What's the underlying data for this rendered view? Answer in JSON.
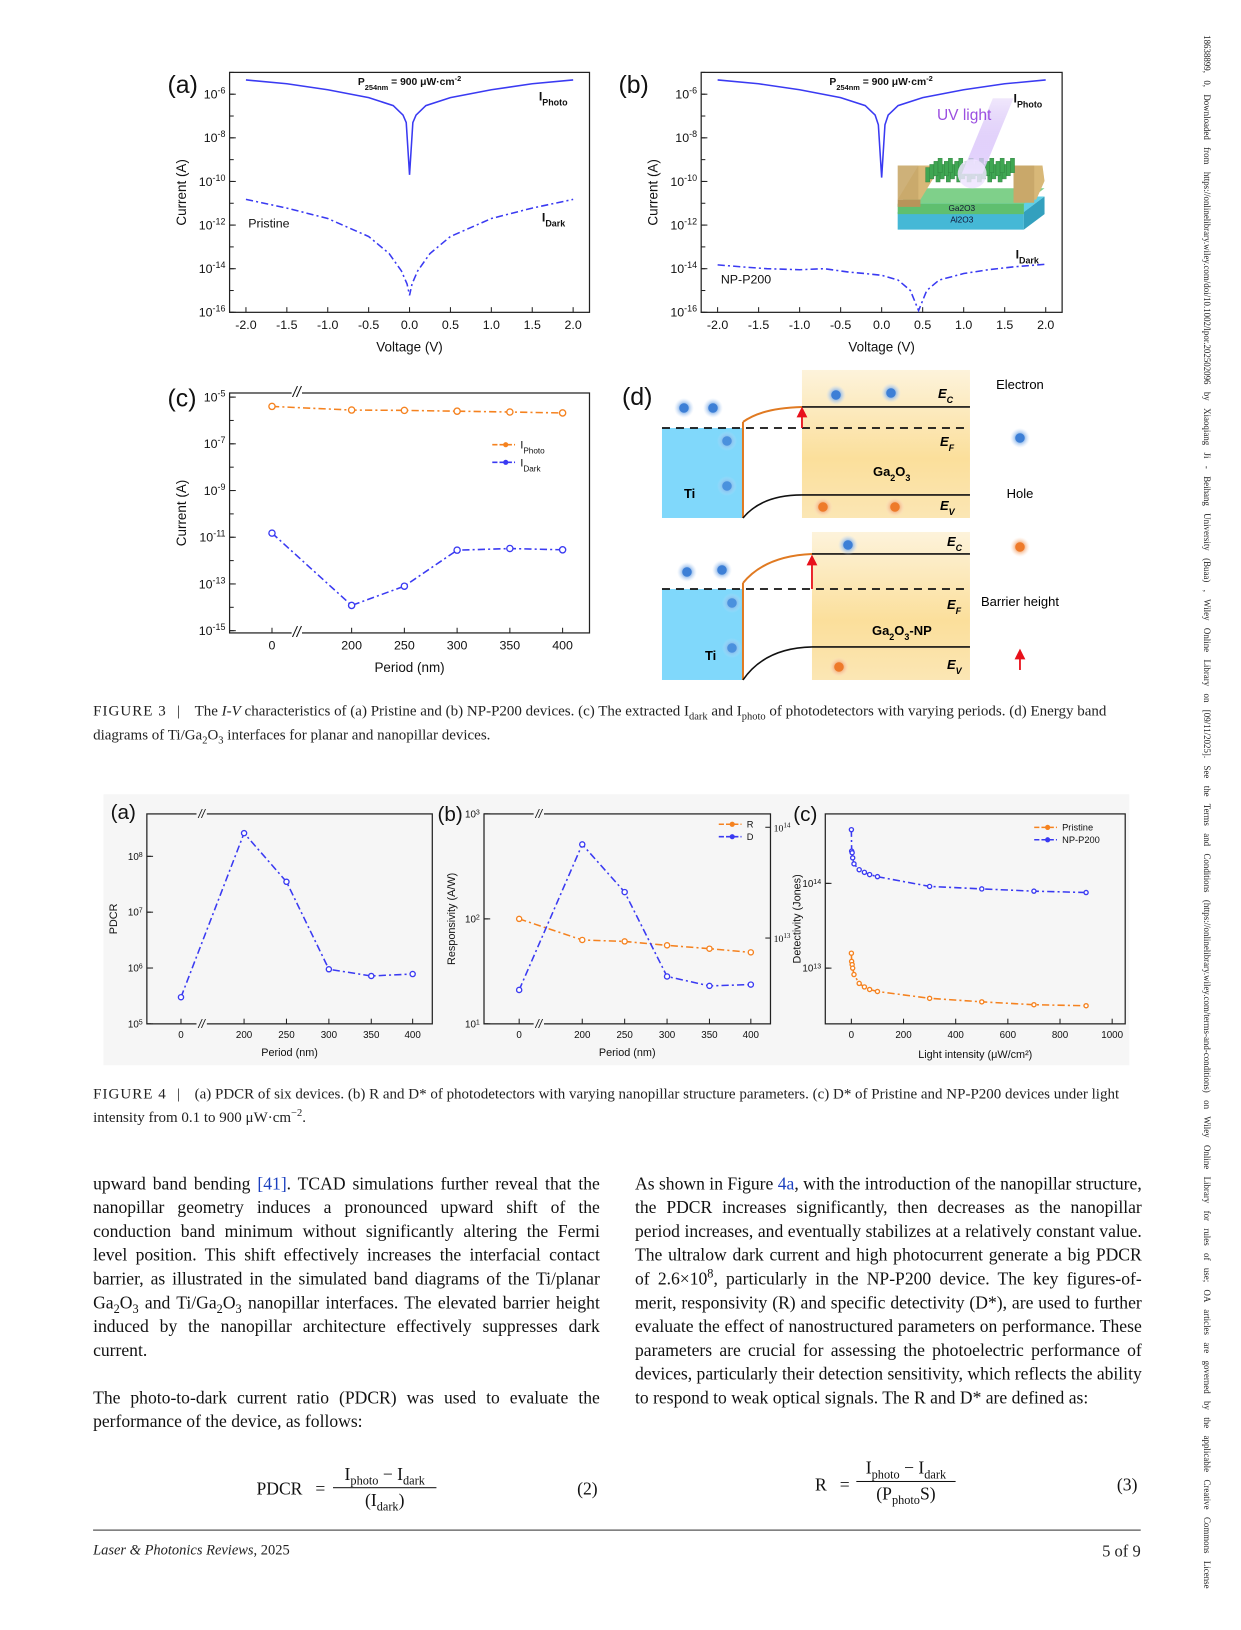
{
  "margin_note": "18638899, 0, Downloaded from https://onlinelibrary.wiley.com/doi/10.1002/lpor.202502096 by Xiaoqiang Ji - Beihang University (Buaa) , Wiley Online Library on [09/11/2025]. See the Terms and Conditions (https://onlinelibrary.wiley.com/terms-and-conditions) on Wiley Online Library for rules of use; OA articles are governed by the applicable Creative Commons License",
  "chart_data": [
    {
      "id": "f3a",
      "panel": "(a)",
      "type": "line",
      "xlabel": "Voltage (V)",
      "ylabel": "Current (A)",
      "xlim": [
        -2.2,
        2.2
      ],
      "ylim": [
        1e-16,
        1e-05
      ],
      "yscale": "log",
      "x_ticks": [
        -2,
        -1.5,
        -1,
        -0.5,
        0,
        0.5,
        1,
        1.5,
        2
      ],
      "x_tick_labels": [
        "-2.0",
        "-1.5",
        "-1.0",
        "-0.5",
        "0.0",
        "0.5",
        "1.0",
        "1.5",
        "2.0"
      ],
      "y_tick_exponents": [
        -16,
        -14,
        -12,
        -10,
        -8,
        -6
      ],
      "series": [
        {
          "name": "IPhoto",
          "color": "#3a3af2",
          "style": "solid",
          "points": [
            [
              -2,
              4.5e-06
            ],
            [
              -1.5,
              3e-06
            ],
            [
              -1,
              1.6e-06
            ],
            [
              -0.5,
              7e-07
            ],
            [
              -0.2,
              3e-07
            ],
            [
              -0.08,
              1.1e-07
            ],
            [
              -0.04,
              5e-08
            ],
            [
              0,
              2e-10
            ],
            [
              0.04,
              5e-08
            ],
            [
              0.08,
              1.1e-07
            ],
            [
              0.2,
              3e-07
            ],
            [
              0.5,
              7e-07
            ],
            [
              1,
              1.6e-06
            ],
            [
              1.5,
              3e-06
            ],
            [
              2,
              4.5e-06
            ]
          ]
        },
        {
          "name": "IDark",
          "color": "#3a3af2",
          "style": "dashdot",
          "points": [
            [
              -2,
              1.5e-11
            ],
            [
              -1.5,
              6e-12
            ],
            [
              -1,
              2e-12
            ],
            [
              -0.5,
              3e-13
            ],
            [
              -0.25,
              5e-14
            ],
            [
              -0.1,
              8e-15
            ],
            [
              -0.03,
              2e-15
            ],
            [
              0,
              6e-16
            ],
            [
              0.03,
              2e-15
            ],
            [
              0.1,
              8e-15
            ],
            [
              0.25,
              5e-14
            ],
            [
              0.5,
              3e-13
            ],
            [
              1,
              2e-12
            ],
            [
              1.5,
              6e-12
            ],
            [
              2,
              1.5e-11
            ]
          ]
        }
      ],
      "annotations": [
        [
          {
            "t": "P"
          },
          {
            "t": "254nm",
            "k": "sub"
          },
          {
            "t": " = 900 μW·cm"
          },
          {
            "t": "-2",
            "k": "sup"
          }
        ],
        [
          {
            "t": "I"
          },
          {
            "t": "Photo",
            "k": "sub"
          }
        ],
        [
          {
            "t": "I"
          },
          {
            "t": "Dark",
            "k": "sub"
          }
        ],
        [
          {
            "t": "Pristine"
          }
        ]
      ]
    },
    {
      "id": "f3b",
      "panel": "(b)",
      "type": "line",
      "xlabel": "Voltage (V)",
      "ylabel": "Current (A)",
      "xlim": [
        -2.2,
        2.2
      ],
      "ylim": [
        1e-16,
        1e-05
      ],
      "yscale": "log",
      "x_ticks": [
        -2,
        -1.5,
        -1,
        -0.5,
        0,
        0.5,
        1,
        1.5,
        2
      ],
      "x_tick_labels": [
        "-2.0",
        "-1.5",
        "-1.0",
        "-0.5",
        "0.0",
        "0.5",
        "1.0",
        "1.5",
        "2.0"
      ],
      "y_tick_exponents": [
        -16,
        -14,
        -12,
        -10,
        -8,
        -6
      ],
      "series": [
        {
          "name": "IPhoto",
          "color": "#3a3af2",
          "style": "solid",
          "points": [
            [
              -2,
              4.5e-06
            ],
            [
              -1.5,
              3e-06
            ],
            [
              -1,
              1.6e-06
            ],
            [
              -0.5,
              7e-07
            ],
            [
              -0.2,
              3e-07
            ],
            [
              -0.08,
              1.1e-07
            ],
            [
              -0.04,
              4e-08
            ],
            [
              0,
              1.5e-10
            ],
            [
              0.04,
              4e-08
            ],
            [
              0.08,
              1.1e-07
            ],
            [
              0.2,
              3e-07
            ],
            [
              0.5,
              7e-07
            ],
            [
              1,
              1.6e-06
            ],
            [
              1.5,
              3e-06
            ],
            [
              2,
              4.5e-06
            ]
          ]
        },
        {
          "name": "IDark",
          "color": "#3a3af2",
          "style": "dashdot",
          "points": [
            [
              -2,
              1.5e-14
            ],
            [
              -1.7,
              1.2e-14
            ],
            [
              -1.4,
              1e-14
            ],
            [
              -1,
              9e-15
            ],
            [
              -0.7,
              1e-14
            ],
            [
              -0.4,
              7e-15
            ],
            [
              -0.2,
              6e-15
            ],
            [
              0,
              5e-15
            ],
            [
              0.2,
              3e-15
            ],
            [
              0.35,
              1e-15
            ],
            [
              0.45,
              1.2e-16
            ],
            [
              0.55,
              1e-15
            ],
            [
              0.7,
              3e-15
            ],
            [
              1,
              6e-15
            ],
            [
              1.3,
              9e-15
            ],
            [
              1.6,
              1.2e-14
            ],
            [
              2,
              1.6e-14
            ]
          ]
        }
      ],
      "annotations": [
        [
          {
            "t": "P"
          },
          {
            "t": "254nm",
            "k": "sub"
          },
          {
            "t": " = 900 μW·cm"
          },
          {
            "t": "-2",
            "k": "sup"
          }
        ],
        [
          {
            "t": "I"
          },
          {
            "t": "Photo",
            "k": "sub"
          }
        ],
        [
          {
            "t": "I"
          },
          {
            "t": "Dark",
            "k": "sub"
          }
        ],
        [
          {
            "t": "NP-P200"
          }
        ],
        [
          {
            "t": "UV light"
          }
        ]
      ],
      "inset": {
        "layer_top": "Ga2O3",
        "layer_bottom": "Al2O3"
      }
    },
    {
      "id": "f3c",
      "panel": "(c)",
      "type": "line",
      "xlabel": "Period (nm)",
      "ylabel": "Current (A)",
      "ylim": [
        8e-16,
        1.5e-05
      ],
      "yscale": "log",
      "x_axis_break": true,
      "x_ticks": [
        0,
        200,
        250,
        300,
        350,
        400
      ],
      "x_tick_labels": [
        "0",
        "200",
        "250",
        "300",
        "350",
        "400"
      ],
      "y_tick_exponents": [
        -15,
        -13,
        -11,
        -9,
        -7,
        -5
      ],
      "series": [
        {
          "name": "IPhoto",
          "color": "#f5821f",
          "style": "dashdot",
          "markers": true,
          "values": [
            4e-06,
            2.8e-06,
            2.7e-06,
            2.5e-06,
            2.3e-06,
            2.1e-06
          ]
        },
        {
          "name": "IDark",
          "color": "#3a3af2",
          "style": "dashdot",
          "markers": true,
          "values": [
            1.5e-11,
            1.2e-14,
            8e-14,
            2.8e-12,
            3.3e-12,
            2.9e-12
          ]
        }
      ],
      "legend_position": "right"
    },
    {
      "id": "f4a",
      "panel": "(a)",
      "type": "line",
      "xlabel": "Period (nm)",
      "ylabel": "PDCR",
      "ylim": [
        100000.0,
        575000000.0
      ],
      "yscale": "log",
      "x_axis_break": true,
      "x_ticks": [
        0,
        200,
        250,
        300,
        350,
        400
      ],
      "x_tick_labels": [
        "0",
        "200",
        "250",
        "300",
        "350",
        "400"
      ],
      "y_tick_exponents": [
        5,
        6,
        7,
        8
      ],
      "series": [
        {
          "name": "PDCR",
          "color": "#3a3af2",
          "style": "dashdot",
          "markers": true,
          "hide_legend": true,
          "values": [
            300000.0,
            260000000.0,
            35000000.0,
            950000.0,
            720000.0,
            780000.0
          ]
        }
      ]
    },
    {
      "id": "f4b",
      "panel": "(b)",
      "type": "line",
      "xlabel": "Period (nm)",
      "ylabel": "Responsivity (A/W)",
      "ylim": [
        10,
        1000
      ],
      "yscale": "log",
      "x_axis_break": true,
      "y2lim": [
        1680000000000.0,
        132000000000000.0
      ],
      "y2_tick_exponents": [
        13,
        14
      ],
      "x_ticks": [
        0,
        200,
        250,
        300,
        350,
        400
      ],
      "x_tick_labels": [
        "0",
        "200",
        "250",
        "300",
        "350",
        "400"
      ],
      "y_tick_exponents": [
        1,
        2,
        3
      ],
      "series": [
        {
          "name": "R",
          "color": "#f5821f",
          "style": "dashdot",
          "markers": true,
          "values": [
            100,
            63,
            61,
            56,
            52,
            48
          ]
        },
        {
          "name": "D",
          "color": "#3a3af2",
          "style": "dashdot",
          "markers": true,
          "axis": "y2",
          "values": [
            3400000000000.0,
            70000000000000.0,
            26000000000000.0,
            4500000000000.0,
            3700000000000.0,
            3800000000000.0
          ]
        }
      ],
      "legend_position": "top-right"
    },
    {
      "id": "f4c",
      "panel": "(c)",
      "type": "line",
      "xlabel": "Light intensity (μW/cm²)",
      "ylabel": "Detectivity (Jones)",
      "xlim": [
        -100,
        1050
      ],
      "ylim": [
        2200000000000.0,
        660000000000000.0
      ],
      "yscale": "log",
      "x_ticks": [
        0,
        200,
        400,
        600,
        800,
        1000
      ],
      "x_tick_labels": [
        "0",
        "200",
        "400",
        "600",
        "800",
        "1000"
      ],
      "y_tick_exponents": [
        13,
        14
      ],
      "series": [
        {
          "name": "Pristine",
          "color": "#f5821f",
          "style": "dashdot",
          "markers": true,
          "points": [
            [
              0.1,
              15000000000000.0
            ],
            [
              1,
              12000000000000.0
            ],
            [
              3,
              11000000000000.0
            ],
            [
              5,
              10000000000000.0
            ],
            [
              10,
              8400000000000.0
            ],
            [
              30,
              6600000000000.0
            ],
            [
              50,
              6000000000000.0
            ],
            [
              70,
              5600000000000.0
            ],
            [
              100,
              5300000000000.0
            ],
            [
              300,
              4400000000000.0
            ],
            [
              500,
              4000000000000.0
            ],
            [
              700,
              3700000000000.0
            ],
            [
              900,
              3600000000000.0
            ]
          ]
        },
        {
          "name": "NP-P200",
          "color": "#3a3af2",
          "style": "dashdot",
          "markers": true,
          "points": [
            [
              0.1,
              430000000000000.0
            ],
            [
              1,
              240000000000000.0
            ],
            [
              3,
              230000000000000.0
            ],
            [
              5,
              200000000000000.0
            ],
            [
              10,
              170000000000000.0
            ],
            [
              30,
              145000000000000.0
            ],
            [
              50,
              135000000000000.0
            ],
            [
              70,
              127000000000000.0
            ],
            [
              100,
              120000000000000.0
            ],
            [
              300,
              92000000000000.0
            ],
            [
              500,
              86000000000000.0
            ],
            [
              700,
              81000000000000.0
            ],
            [
              900,
              78000000000000.0
            ]
          ]
        }
      ],
      "legend_position": "top-right"
    }
  ],
  "figure3d": {
    "panel": "(d)",
    "ec": "E",
    "ec_sub": "C",
    "ef": "E",
    "ef_sub": "F",
    "ev": "E",
    "ev_sub": "V",
    "metal": "Ti",
    "top_material": [
      "Ga",
      "2",
      "O",
      "3"
    ],
    "bottom_material": [
      "Ga",
      "2",
      "O",
      "3",
      "-NP"
    ],
    "legend": {
      "electron": "Electron",
      "hole": "Hole",
      "barrier": "Barrier height"
    }
  },
  "figure3_caption": {
    "label": "FIGURE 3",
    "bar": "|",
    "segments": [
      {
        "t": "The "
      },
      {
        "t": "I-V",
        "k": "i"
      },
      {
        "t": " characteristics of (a) Pristine and (b) NP-P200 devices. (c) The extracted I"
      },
      {
        "t": "dark",
        "k": "sub"
      },
      {
        "t": " and I"
      },
      {
        "t": "photo",
        "k": "sub"
      },
      {
        "t": " of photodetectors with varying periods. (d) Energy band diagrams of Ti/Ga"
      },
      {
        "t": "2",
        "k": "sub"
      },
      {
        "t": "O"
      },
      {
        "t": "3",
        "k": "sub"
      },
      {
        "t": " interfaces for planar and nanopillar devices."
      }
    ]
  },
  "figure4_caption": {
    "label": "FIGURE 4",
    "bar": "|",
    "segments": [
      {
        "t": "(a) PDCR of six devices. (b) R and D* of photodetectors with varying nanopillar structure parameters. (c) D* of Pristine and NP-P200 devices under light intensity from 0.1 to 900 μW·cm"
      },
      {
        "t": "−2",
        "k": "sup"
      },
      {
        "t": "."
      }
    ]
  },
  "body": {
    "left": [
      [
        {
          "t": "upward band bending "
        },
        {
          "t": "[41]",
          "k": "link"
        },
        {
          "t": ". TCAD simulations further reveal that the nanopillar geometry induces a pronounced upward shift of the conduction band minimum without significantly altering the Fermi level position. This shift effectively increases the interfacial contact barrier, as illustrated in the simulated band diagrams of the Ti/planar Ga"
        },
        {
          "t": "2",
          "k": "sub"
        },
        {
          "t": "O"
        },
        {
          "t": "3",
          "k": "sub"
        },
        {
          "t": " and Ti/Ga"
        },
        {
          "t": "2",
          "k": "sub"
        },
        {
          "t": "O"
        },
        {
          "t": "3",
          "k": "sub"
        },
        {
          "t": " nanopillar interfaces. The elevated barrier height induced by the nanopillar architecture effectively suppresses dark current."
        }
      ],
      [
        {
          "t": "The photo-to-dark current ratio (PDCR) was used to evaluate the performance of the device, as follows:"
        }
      ]
    ],
    "right": [
      [
        {
          "t": "As shown in Figure "
        },
        {
          "t": "4a",
          "k": "link"
        },
        {
          "t": ", with the introduction of the nanopillar structure, the PDCR increases significantly, then decreases as the nanopillar period increases, and eventually stabilizes at a relatively constant value. The ultralow dark current and high photocurrent generate a big PDCR of 2.6×10"
        },
        {
          "t": "8",
          "k": "sup"
        },
        {
          "t": ", particularly in the NP-P200 device. The key figures-of-merit, responsivity (R) and specific detectivity (D*), are used to further evaluate the effect of nanostructured parameters on performance. These parameters are crucial for assessing the photoelectric performance of devices, particularly their detection sensitivity, which reflects the ability to respond to weak optical signals. The R and D* are defined as:"
        }
      ]
    ]
  },
  "equations": {
    "eq2": {
      "lhs": "PDCR",
      "eq": "=",
      "num_a": "I",
      "num_a_sub": "photo",
      "minus": " − ",
      "num_b": "I",
      "num_b_sub": "dark",
      "den_open": "(I",
      "den_sub": "dark",
      "den_close": ")",
      "number": "(2)"
    },
    "eq3": {
      "lhs": "R",
      "eq": "=",
      "num_a": "I",
      "num_a_sub": "photo",
      "minus": " − ",
      "num_b": "I",
      "num_b_sub": "dark",
      "den_open": "(P",
      "den_sub": "photo",
      "den_close": "S)",
      "number": "(3)"
    }
  },
  "footer": {
    "journal": "Laser & Photonics Reviews",
    "year": ", 2025",
    "page": "5 of 9"
  }
}
